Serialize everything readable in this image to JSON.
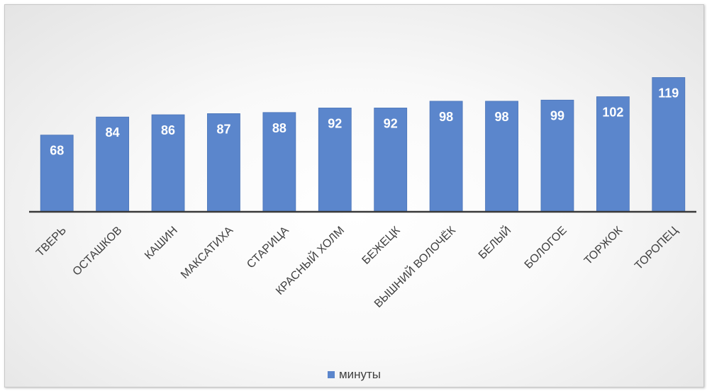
{
  "chart_data": {
    "type": "bar",
    "categories": [
      "ТВЕРЬ",
      "ОСТАШКОВ",
      "КАШИН",
      "МАКСАТИХА",
      "СТАРИЦА",
      "КРАСНЫЙ ХОЛМ",
      "БЕЖЕЦК",
      "ВЫШНИЙ ВОЛОЧЁК",
      "БЕЛЫЙ",
      "БОЛОГОЕ",
      "ТОРЖОК",
      "ТОРОПЕЦ"
    ],
    "series": [
      {
        "name": "минуты",
        "values": [
          68,
          84,
          86,
          87,
          88,
          92,
          92,
          98,
          98,
          99,
          102,
          119
        ]
      }
    ],
    "title": "",
    "xlabel": "",
    "ylabel": "",
    "ylim": [
      0,
      130
    ],
    "grid": false,
    "data_labels": true,
    "legend_position": "bottom",
    "bar_color": "#5b86cc"
  }
}
